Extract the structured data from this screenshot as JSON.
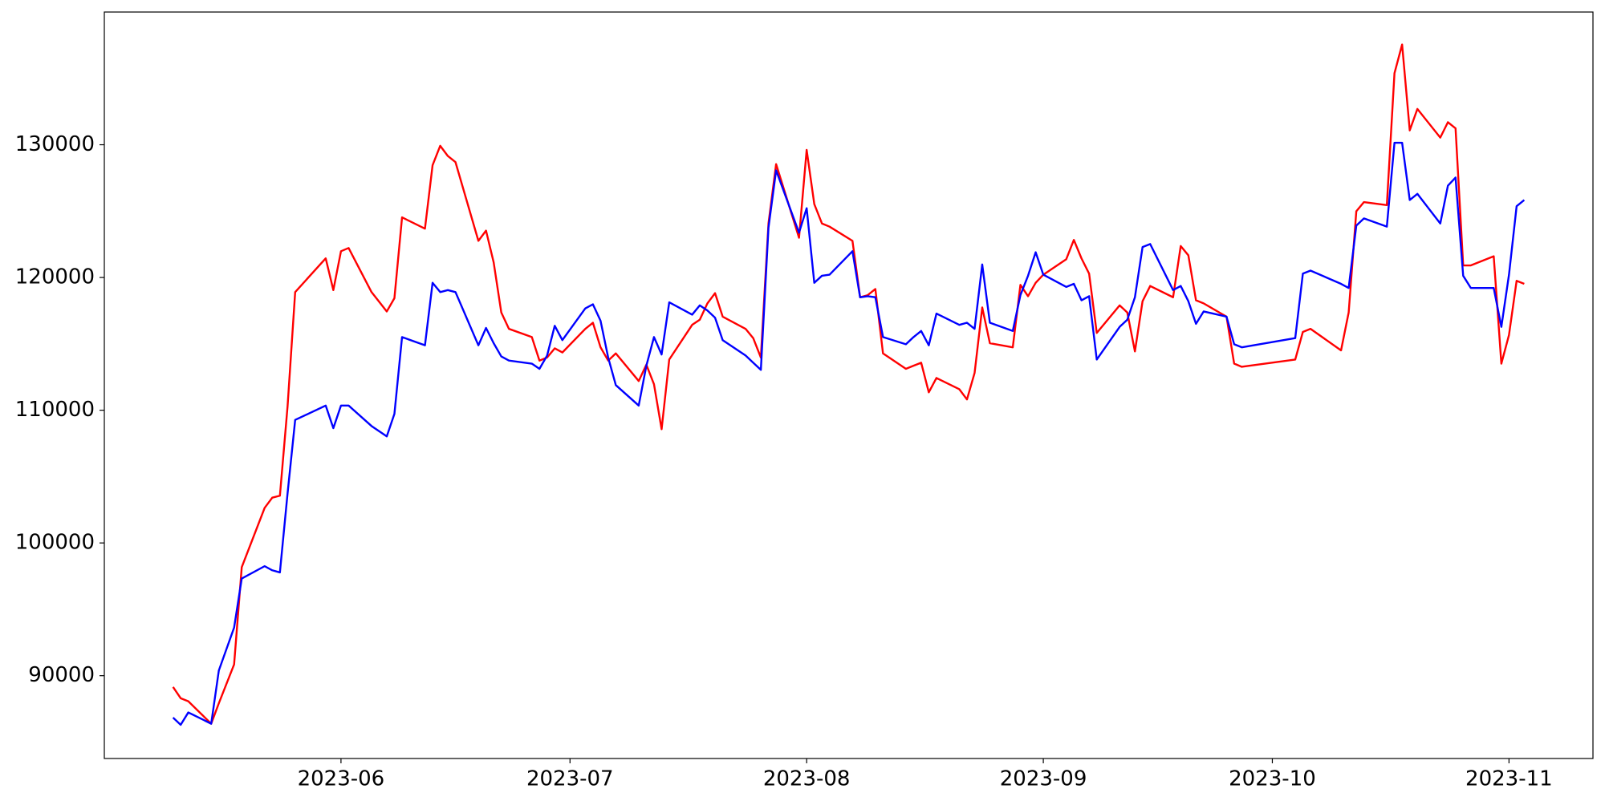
{
  "chart_data": {
    "type": "line",
    "x": [
      "2023-05-10",
      "2023-05-11",
      "2023-05-12",
      "2023-05-15",
      "2023-05-16",
      "2023-05-18",
      "2023-05-19",
      "2023-05-22",
      "2023-05-23",
      "2023-05-24",
      "2023-05-25",
      "2023-05-26",
      "2023-05-30",
      "2023-05-31",
      "2023-06-01",
      "2023-06-02",
      "2023-06-05",
      "2023-06-07",
      "2023-06-08",
      "2023-06-09",
      "2023-06-12",
      "2023-06-13",
      "2023-06-14",
      "2023-06-15",
      "2023-06-16",
      "2023-06-19",
      "2023-06-20",
      "2023-06-21",
      "2023-06-22",
      "2023-06-23",
      "2023-06-26",
      "2023-06-27",
      "2023-06-28",
      "2023-06-29",
      "2023-06-30",
      "2023-07-03",
      "2023-07-04",
      "2023-07-05",
      "2023-07-06",
      "2023-07-07",
      "2023-07-10",
      "2023-07-11",
      "2023-07-12",
      "2023-07-13",
      "2023-07-14",
      "2023-07-17",
      "2023-07-18",
      "2023-07-19",
      "2023-07-20",
      "2023-07-21",
      "2023-07-24",
      "2023-07-25",
      "2023-07-26",
      "2023-07-27",
      "2023-07-28",
      "2023-07-31",
      "2023-08-01",
      "2023-08-02",
      "2023-08-03",
      "2023-08-04",
      "2023-08-07",
      "2023-08-08",
      "2023-08-09",
      "2023-08-10",
      "2023-08-11",
      "2023-08-14",
      "2023-08-15",
      "2023-08-16",
      "2023-08-17",
      "2023-08-18",
      "2023-08-21",
      "2023-08-22",
      "2023-08-23",
      "2023-08-24",
      "2023-08-25",
      "2023-08-28",
      "2023-08-29",
      "2023-08-30",
      "2023-08-31",
      "2023-09-01",
      "2023-09-04",
      "2023-09-05",
      "2023-09-06",
      "2023-09-07",
      "2023-09-08",
      "2023-09-11",
      "2023-09-12",
      "2023-09-13",
      "2023-09-14",
      "2023-09-15",
      "2023-09-18",
      "2023-09-19",
      "2023-09-20",
      "2023-09-21",
      "2023-09-22",
      "2023-09-25",
      "2023-09-26",
      "2023-09-27",
      "2023-10-04",
      "2023-10-05",
      "2023-10-06",
      "2023-10-10",
      "2023-10-11",
      "2023-10-12",
      "2023-10-13",
      "2023-10-16",
      "2023-10-17",
      "2023-10-18",
      "2023-10-19",
      "2023-10-20",
      "2023-10-23",
      "2023-10-24",
      "2023-10-25",
      "2023-10-26",
      "2023-10-27",
      "2023-10-30",
      "2023-10-31",
      "2023-11-01",
      "2023-11-02",
      "2023-11-03"
    ],
    "series": [
      {
        "color": "#ff0000",
        "values": [
          89150,
          88300,
          88070,
          86380,
          87920,
          90850,
          98170,
          102640,
          103410,
          103560,
          110270,
          118900,
          121440,
          119050,
          121980,
          122220,
          118900,
          117440,
          118440,
          124530,
          123680,
          128460,
          129920,
          129150,
          128690,
          122760,
          123530,
          121140,
          117360,
          116130,
          115510,
          113740,
          113970,
          114660,
          114350,
          116130,
          116590,
          114740,
          113740,
          114280,
          112200,
          113430,
          111960,
          108570,
          113820,
          116430,
          116820,
          118050,
          118820,
          117050,
          116130,
          115430,
          113970,
          124070,
          128540,
          122990,
          129610,
          125530,
          124070,
          123830,
          122760,
          118510,
          118670,
          119130,
          114280,
          113120,
          113350,
          113580,
          111350,
          112430,
          111580,
          110810,
          112810,
          117740,
          115050,
          114740,
          119440,
          118590,
          119600,
          120210,
          121370,
          122830,
          121440,
          120290,
          115820,
          117900,
          117360,
          114430,
          118210,
          119360,
          118510,
          122370,
          121670,
          118280,
          118050,
          117050,
          113510,
          113270,
          113820,
          115900,
          116130,
          114510,
          117360,
          124990,
          125680,
          125450,
          135390,
          137550,
          131080,
          132700,
          130540,
          131700,
          131240,
          120910,
          120910,
          121600,
          113510,
          115670,
          119750,
          119520
        ]
      },
      {
        "color": "#0000ff",
        "values": [
          86840,
          86300,
          87230,
          86380,
          90390,
          93620,
          97320,
          98250,
          97940,
          97780,
          103720,
          109270,
          110350,
          108650,
          110350,
          110350,
          108810,
          108030,
          109730,
          115510,
          114890,
          119600,
          118900,
          119050,
          118900,
          114890,
          116200,
          115050,
          114050,
          113740,
          113510,
          113120,
          114120,
          116360,
          115280,
          117670,
          117980,
          116740,
          113970,
          111890,
          110350,
          113350,
          115510,
          114200,
          118130,
          117200,
          117900,
          117510,
          116970,
          115280,
          114120,
          113580,
          113040,
          123760,
          128070,
          123370,
          125220,
          119600,
          120130,
          120210,
          121980,
          118510,
          118590,
          118510,
          115510,
          114970,
          115510,
          115970,
          114890,
          117280,
          116430,
          116590,
          116130,
          120980,
          116590,
          115970,
          118670,
          120130,
          121900,
          120210,
          119290,
          119520,
          118280,
          118590,
          113820,
          116280,
          116820,
          118510,
          122290,
          122520,
          119050,
          119360,
          118210,
          116510,
          117440,
          117050,
          114970,
          114740,
          115430,
          120290,
          120520,
          119520,
          119210,
          123910,
          124450,
          123830,
          130150,
          130150,
          125840,
          126300,
          124070,
          126920,
          127530,
          120130,
          119210,
          119210,
          116280,
          120210,
          125370,
          125840
        ]
      }
    ],
    "xlim": [
      "2023-05-01",
      "2023-11-12"
    ],
    "xticks": [
      {
        "value": "2023-06-01",
        "label": "2023-06"
      },
      {
        "value": "2023-07-01",
        "label": "2023-07"
      },
      {
        "value": "2023-08-01",
        "label": "2023-08"
      },
      {
        "value": "2023-09-01",
        "label": "2023-09"
      },
      {
        "value": "2023-10-01",
        "label": "2023-10"
      },
      {
        "value": "2023-11-01",
        "label": "2023-11"
      }
    ],
    "ylim": [
      83760,
      140000
    ],
    "yticks": [
      90000,
      100000,
      110000,
      120000,
      130000
    ],
    "grid": false
  }
}
